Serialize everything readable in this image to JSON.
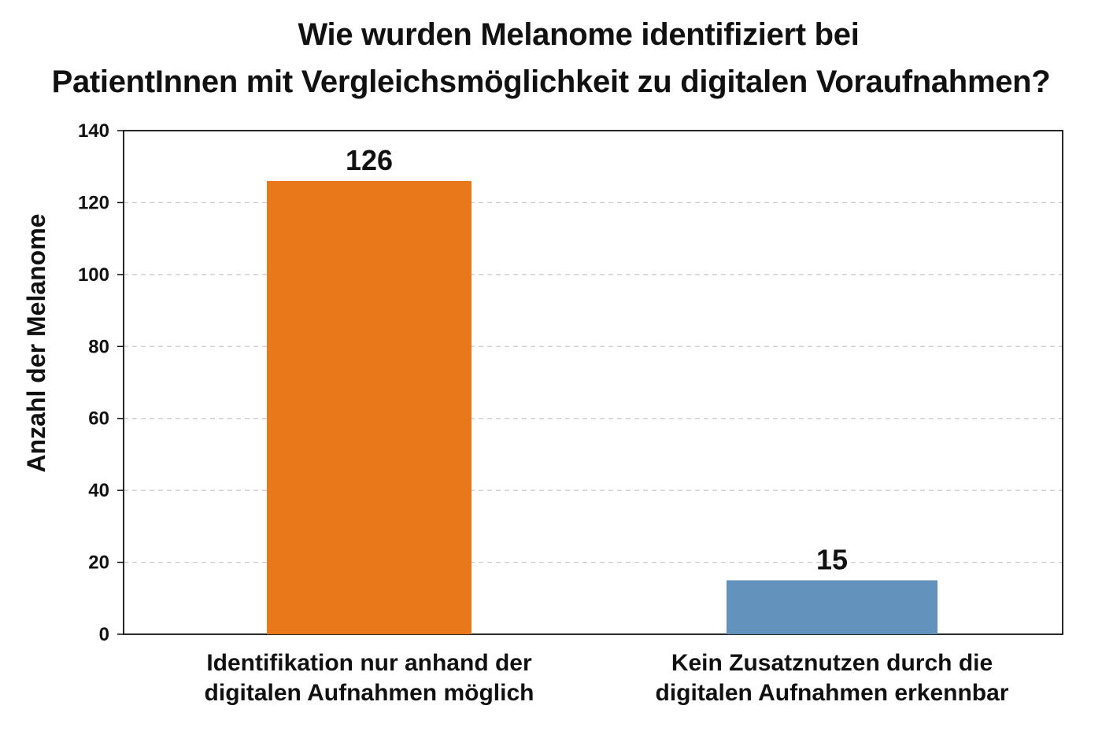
{
  "chart_data": {
    "type": "bar",
    "title_lines": [
      "Wie wurden Melanome identifiziert bei",
      "PatientInnen mit Vergleichsmöglichkeit zu digitalen Voraufnahmen?"
    ],
    "ylabel": "Anzahl der Melanome",
    "xlabel": "",
    "categories": [
      [
        "Identifikation nur anhand der",
        "digitalen Aufnahmen möglich"
      ],
      [
        "Kein Zusatznutzen durch die",
        "digitalen Aufnahmen erkennbar"
      ]
    ],
    "values": [
      126,
      15
    ],
    "data_labels": [
      "126",
      "15"
    ],
    "colors": [
      "#e8781a",
      "#6393bc"
    ],
    "ylim": [
      0,
      140
    ],
    "yticks": [
      0,
      20,
      40,
      60,
      80,
      100,
      120,
      140
    ],
    "grid": true,
    "legend": "none"
  }
}
